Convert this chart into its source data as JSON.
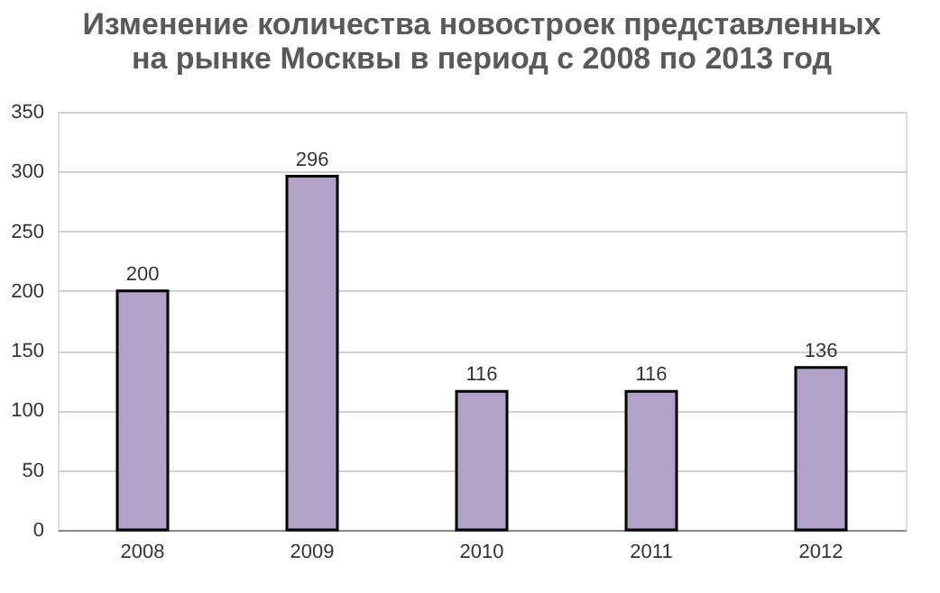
{
  "chart_data": {
    "type": "bar",
    "title": "Изменение количества новостроек представленных\nна рынке Москвы в период с 2008 по 2013 год",
    "categories": [
      "2008",
      "2009",
      "2010",
      "2011",
      "2012"
    ],
    "values": [
      200,
      296,
      116,
      116,
      136
    ],
    "color": "#b3a2c7",
    "ylim": [
      0,
      350
    ],
    "yticks": [
      0,
      50,
      100,
      150,
      200,
      250,
      300,
      350
    ],
    "grid": "y",
    "data_labels": true
  }
}
